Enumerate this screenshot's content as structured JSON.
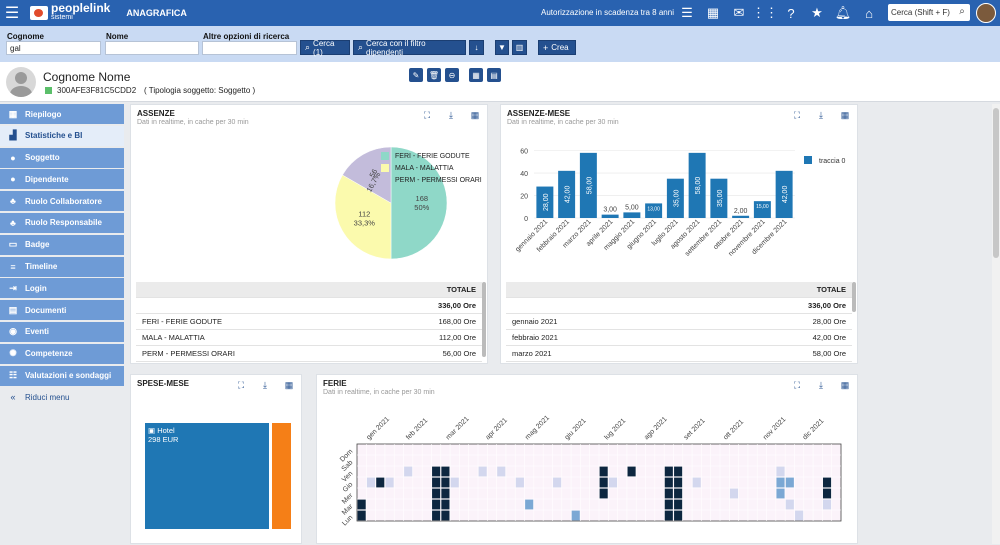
{
  "topbar": {
    "brand_name": "peoplelink",
    "brand_sub": "sistemi",
    "app_title": "ANAGRAFICA",
    "auth_notice": "Autorizzazione in scadenza tra 8 anni",
    "search_placeholder": "Cerca (Shift + F)"
  },
  "filters": {
    "cognome_label": "Cognome",
    "cognome_value": "gal",
    "nome_label": "Nome",
    "nome_value": "",
    "altre_label": "Altre opzioni di ricerca",
    "altre_value": "",
    "cerca_label": "Cerca (1)",
    "cerca_filtro_label": "Cerca con il filtro dipendenti",
    "crea_label": "Crea"
  },
  "subject": {
    "name": "Cognome Nome",
    "code": "300AFE3F81C5CDD2",
    "type": "( Tipologia soggetto: Soggetto )"
  },
  "sidebar": {
    "items": [
      {
        "label": "Riepilogo",
        "icon": "dashboard-icon"
      },
      {
        "label": "Statistiche e BI",
        "icon": "chart-icon"
      },
      {
        "label": "Soggetto",
        "icon": "user-icon"
      },
      {
        "label": "Dipendente",
        "icon": "user-icon"
      },
      {
        "label": "Ruolo Collaboratore",
        "icon": "org-icon"
      },
      {
        "label": "Ruolo Responsabile",
        "icon": "org-icon"
      },
      {
        "label": "Badge",
        "icon": "badge-icon"
      },
      {
        "label": "Timeline",
        "icon": "timeline-icon"
      },
      {
        "label": "Login",
        "icon": "login-icon"
      },
      {
        "label": "Documenti",
        "icon": "document-icon"
      },
      {
        "label": "Eventi",
        "icon": "events-icon"
      },
      {
        "label": "Competenze",
        "icon": "skills-icon"
      },
      {
        "label": "Valutazioni e sondaggi",
        "icon": "survey-icon"
      }
    ],
    "reduce_label": "Riduci menu"
  },
  "assenze": {
    "title": "ASSENZE",
    "subtitle": "Dati in realtime, in cache per 30 min",
    "table_header": "TOTALE",
    "total": "336,00 Ore",
    "rows": [
      {
        "label": "FERI - FERIE GODUTE",
        "value": "168,00 Ore"
      },
      {
        "label": "MALA - MALATTIA",
        "value": "112,00 Ore"
      },
      {
        "label": "PERM - PERMESSI ORARI",
        "value": "56,00 Ore"
      }
    ]
  },
  "assenze_mese": {
    "title": "ASSENZE-MESE",
    "subtitle": "Dati in realtime, in cache per 30 min",
    "table_header": "TOTALE",
    "total": "336,00 Ore",
    "rows": [
      {
        "label": "gennaio 2021",
        "value": "28,00 Ore"
      },
      {
        "label": "febbraio 2021",
        "value": "42,00 Ore"
      },
      {
        "label": "marzo 2021",
        "value": "58,00 Ore"
      }
    ]
  },
  "spese": {
    "title": "SPESE-MESE",
    "hotel_label": "Hotel",
    "hotel_value": "298 EUR"
  },
  "ferie": {
    "title": "FERIE",
    "subtitle": "Dati in realtime, in cache per 30 min"
  },
  "chart_data": [
    {
      "type": "pie",
      "title": "ASSENZE",
      "categories": [
        "FERI - FERIE GODUTE",
        "MALA - MALATTIA",
        "PERM - PERMESSI ORARI"
      ],
      "values": [
        168,
        112,
        56
      ],
      "labels": [
        "50%",
        "33,3%",
        "16,7%"
      ],
      "colors": [
        "#8fd8c8",
        "#fbfaad",
        "#c3bcdb"
      ],
      "legend": "right"
    },
    {
      "type": "bar",
      "title": "ASSENZE-MESE",
      "categories": [
        "gennaio 2021",
        "febbraio 2021",
        "marzo 2021",
        "aprile 2021",
        "maggio 2021",
        "giugno 2021",
        "luglio 2021",
        "agosto 2021",
        "settembre 2021",
        "ottobre 2021",
        "novembre 2021",
        "dicembre 2021"
      ],
      "series": [
        {
          "name": "traccia 0",
          "values": [
            28,
            42,
            58,
            3,
            5,
            13,
            35,
            58,
            35,
            2,
            15,
            42
          ]
        }
      ],
      "value_labels": [
        "28,00",
        "42,00",
        "58,00",
        "3,00",
        "5,00",
        "13,00",
        "35,00",
        "58,00",
        "35,00",
        "2,00",
        "15,00",
        "42,00"
      ],
      "yticks": [
        "0",
        "20",
        "40",
        "60"
      ],
      "ylim": [
        0,
        65
      ],
      "color": "#1f77b4",
      "legend": "right"
    },
    {
      "type": "heatmap",
      "title": "FERIE",
      "x_labels": [
        "gen 2021",
        "feb 2021",
        "mar 2021",
        "apr 2021",
        "mag 2021",
        "giu 2021",
        "lug 2021",
        "ago 2021",
        "set 2021",
        "ott 2021",
        "nov 2021",
        "dic 2021"
      ],
      "y_labels": [
        "Dom",
        "Sab",
        "Ven",
        "Gio",
        "Mer",
        "Mar",
        "Lun"
      ],
      "weeks": 52,
      "cells": [
        {
          "w": 0,
          "d": 6,
          "v": 4
        },
        {
          "w": 0,
          "d": 5,
          "v": 4
        },
        {
          "w": 1,
          "d": 3,
          "v": 1
        },
        {
          "w": 2,
          "d": 3,
          "v": 4
        },
        {
          "w": 3,
          "d": 3,
          "v": 1
        },
        {
          "w": 5,
          "d": 2,
          "v": 1
        },
        {
          "w": 8,
          "d": 2,
          "v": 4
        },
        {
          "w": 8,
          "d": 3,
          "v": 4
        },
        {
          "w": 8,
          "d": 4,
          "v": 4
        },
        {
          "w": 8,
          "d": 5,
          "v": 4
        },
        {
          "w": 8,
          "d": 6,
          "v": 4
        },
        {
          "w": 9,
          "d": 2,
          "v": 4
        },
        {
          "w": 9,
          "d": 3,
          "v": 4
        },
        {
          "w": 9,
          "d": 4,
          "v": 4
        },
        {
          "w": 9,
          "d": 5,
          "v": 4
        },
        {
          "w": 9,
          "d": 6,
          "v": 4
        },
        {
          "w": 10,
          "d": 3,
          "v": 1
        },
        {
          "w": 13,
          "d": 2,
          "v": 1
        },
        {
          "w": 15,
          "d": 2,
          "v": 1
        },
        {
          "w": 17,
          "d": 3,
          "v": 1
        },
        {
          "w": 18,
          "d": 5,
          "v": 2
        },
        {
          "w": 21,
          "d": 3,
          "v": 1
        },
        {
          "w": 23,
          "d": 6,
          "v": 2
        },
        {
          "w": 26,
          "d": 2,
          "v": 4
        },
        {
          "w": 26,
          "d": 3,
          "v": 4
        },
        {
          "w": 26,
          "d": 4,
          "v": 4
        },
        {
          "w": 27,
          "d": 3,
          "v": 1
        },
        {
          "w": 29,
          "d": 2,
          "v": 4
        },
        {
          "w": 33,
          "d": 2,
          "v": 4
        },
        {
          "w": 33,
          "d": 3,
          "v": 4
        },
        {
          "w": 33,
          "d": 4,
          "v": 4
        },
        {
          "w": 33,
          "d": 5,
          "v": 4
        },
        {
          "w": 33,
          "d": 6,
          "v": 4
        },
        {
          "w": 34,
          "d": 2,
          "v": 4
        },
        {
          "w": 34,
          "d": 3,
          "v": 4
        },
        {
          "w": 34,
          "d": 4,
          "v": 4
        },
        {
          "w": 34,
          "d": 5,
          "v": 4
        },
        {
          "w": 34,
          "d": 6,
          "v": 4
        },
        {
          "w": 36,
          "d": 3,
          "v": 1
        },
        {
          "w": 40,
          "d": 4,
          "v": 1
        },
        {
          "w": 45,
          "d": 2,
          "v": 1
        },
        {
          "w": 45,
          "d": 3,
          "v": 2
        },
        {
          "w": 45,
          "d": 4,
          "v": 2
        },
        {
          "w": 46,
          "d": 3,
          "v": 2
        },
        {
          "w": 46,
          "d": 5,
          "v": 1
        },
        {
          "w": 47,
          "d": 6,
          "v": 1
        },
        {
          "w": 50,
          "d": 3,
          "v": 4
        },
        {
          "w": 50,
          "d": 4,
          "v": 4
        },
        {
          "w": 50,
          "d": 5,
          "v": 1
        }
      ]
    }
  ]
}
